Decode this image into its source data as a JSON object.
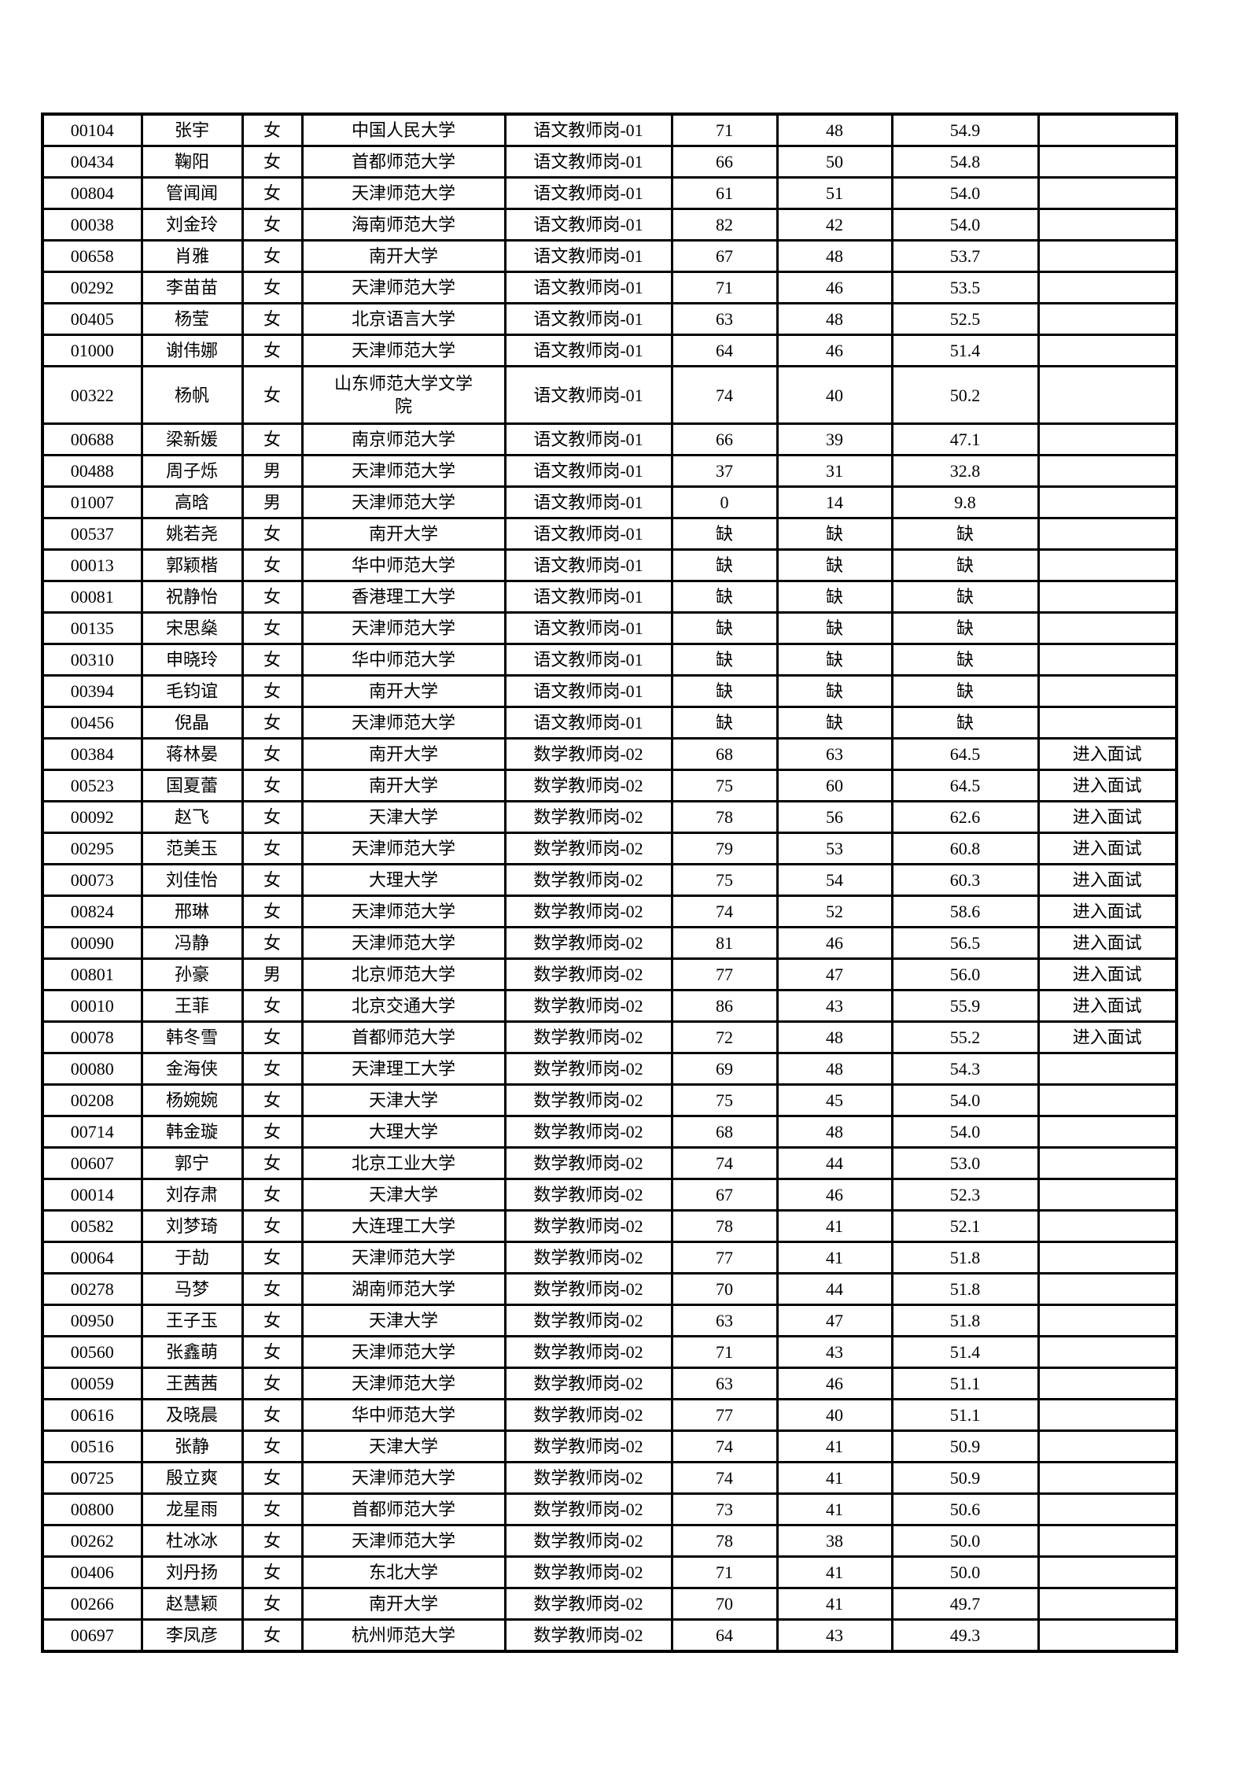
{
  "colors": {
    "background": "#ffffff",
    "text": "#000000",
    "border": "#000000"
  },
  "table": {
    "rows": [
      [
        "00104",
        "张宇",
        "女",
        "中国人民大学",
        "语文教师岗-01",
        "71",
        "48",
        "54.9",
        ""
      ],
      [
        "00434",
        "鞠阳",
        "女",
        "首都师范大学",
        "语文教师岗-01",
        "66",
        "50",
        "54.8",
        ""
      ],
      [
        "00804",
        "管闻闻",
        "女",
        "天津师范大学",
        "语文教师岗-01",
        "61",
        "51",
        "54.0",
        ""
      ],
      [
        "00038",
        "刘金玲",
        "女",
        "海南师范大学",
        "语文教师岗-01",
        "82",
        "42",
        "54.0",
        ""
      ],
      [
        "00658",
        "肖雅",
        "女",
        "南开大学",
        "语文教师岗-01",
        "67",
        "48",
        "53.7",
        ""
      ],
      [
        "00292",
        "李苗苗",
        "女",
        "天津师范大学",
        "语文教师岗-01",
        "71",
        "46",
        "53.5",
        ""
      ],
      [
        "00405",
        "杨莹",
        "女",
        "北京语言大学",
        "语文教师岗-01",
        "63",
        "48",
        "52.5",
        ""
      ],
      [
        "01000",
        "谢伟娜",
        "女",
        "天津师范大学",
        "语文教师岗-01",
        "64",
        "46",
        "51.4",
        ""
      ],
      [
        "00322",
        "杨帆",
        "女",
        "山东师范大学文学\n院",
        "语文教师岗-01",
        "74",
        "40",
        "50.2",
        ""
      ],
      [
        "00688",
        "梁新媛",
        "女",
        "南京师范大学",
        "语文教师岗-01",
        "66",
        "39",
        "47.1",
        ""
      ],
      [
        "00488",
        "周子烁",
        "男",
        "天津师范大学",
        "语文教师岗-01",
        "37",
        "31",
        "32.8",
        ""
      ],
      [
        "01007",
        "高晗",
        "男",
        "天津师范大学",
        "语文教师岗-01",
        "0",
        "14",
        "9.8",
        ""
      ],
      [
        "00537",
        "姚若尧",
        "女",
        "南开大学",
        "语文教师岗-01",
        "缺",
        "缺",
        "缺",
        ""
      ],
      [
        "00013",
        "郭颖楷",
        "女",
        "华中师范大学",
        "语文教师岗-01",
        "缺",
        "缺",
        "缺",
        ""
      ],
      [
        "00081",
        "祝静怡",
        "女",
        "香港理工大学",
        "语文教师岗-01",
        "缺",
        "缺",
        "缺",
        ""
      ],
      [
        "00135",
        "宋思燊",
        "女",
        "天津师范大学",
        "语文教师岗-01",
        "缺",
        "缺",
        "缺",
        ""
      ],
      [
        "00310",
        "申晓玲",
        "女",
        "华中师范大学",
        "语文教师岗-01",
        "缺",
        "缺",
        "缺",
        ""
      ],
      [
        "00394",
        "毛钧谊",
        "女",
        "南开大学",
        "语文教师岗-01",
        "缺",
        "缺",
        "缺",
        ""
      ],
      [
        "00456",
        "倪晶",
        "女",
        "天津师范大学",
        "语文教师岗-01",
        "缺",
        "缺",
        "缺",
        ""
      ],
      [
        "00384",
        "蒋林晏",
        "女",
        "南开大学",
        "数学教师岗-02",
        "68",
        "63",
        "64.5",
        "进入面试"
      ],
      [
        "00523",
        "国夏蕾",
        "女",
        "南开大学",
        "数学教师岗-02",
        "75",
        "60",
        "64.5",
        "进入面试"
      ],
      [
        "00092",
        "赵飞",
        "女",
        "天津大学",
        "数学教师岗-02",
        "78",
        "56",
        "62.6",
        "进入面试"
      ],
      [
        "00295",
        "范美玉",
        "女",
        "天津师范大学",
        "数学教师岗-02",
        "79",
        "53",
        "60.8",
        "进入面试"
      ],
      [
        "00073",
        "刘佳怡",
        "女",
        "大理大学",
        "数学教师岗-02",
        "75",
        "54",
        "60.3",
        "进入面试"
      ],
      [
        "00824",
        "邢琳",
        "女",
        "天津师范大学",
        "数学教师岗-02",
        "74",
        "52",
        "58.6",
        "进入面试"
      ],
      [
        "00090",
        "冯静",
        "女",
        "天津师范大学",
        "数学教师岗-02",
        "81",
        "46",
        "56.5",
        "进入面试"
      ],
      [
        "00801",
        "孙豪",
        "男",
        "北京师范大学",
        "数学教师岗-02",
        "77",
        "47",
        "56.0",
        "进入面试"
      ],
      [
        "00010",
        "王菲",
        "女",
        "北京交通大学",
        "数学教师岗-02",
        "86",
        "43",
        "55.9",
        "进入面试"
      ],
      [
        "00078",
        "韩冬雪",
        "女",
        "首都师范大学",
        "数学教师岗-02",
        "72",
        "48",
        "55.2",
        "进入面试"
      ],
      [
        "00080",
        "金海侠",
        "女",
        "天津理工大学",
        "数学教师岗-02",
        "69",
        "48",
        "54.3",
        ""
      ],
      [
        "00208",
        "杨婉婉",
        "女",
        "天津大学",
        "数学教师岗-02",
        "75",
        "45",
        "54.0",
        ""
      ],
      [
        "00714",
        "韩金璇",
        "女",
        "大理大学",
        "数学教师岗-02",
        "68",
        "48",
        "54.0",
        ""
      ],
      [
        "00607",
        "郭宁",
        "女",
        "北京工业大学",
        "数学教师岗-02",
        "74",
        "44",
        "53.0",
        ""
      ],
      [
        "00014",
        "刘存肃",
        "女",
        "天津大学",
        "数学教师岗-02",
        "67",
        "46",
        "52.3",
        ""
      ],
      [
        "00582",
        "刘梦琦",
        "女",
        "大连理工大学",
        "数学教师岗-02",
        "78",
        "41",
        "52.1",
        ""
      ],
      [
        "00064",
        "于劼",
        "女",
        "天津师范大学",
        "数学教师岗-02",
        "77",
        "41",
        "51.8",
        ""
      ],
      [
        "00278",
        "马梦",
        "女",
        "湖南师范大学",
        "数学教师岗-02",
        "70",
        "44",
        "51.8",
        ""
      ],
      [
        "00950",
        "王子玉",
        "女",
        "天津大学",
        "数学教师岗-02",
        "63",
        "47",
        "51.8",
        ""
      ],
      [
        "00560",
        "张鑫萌",
        "女",
        "天津师范大学",
        "数学教师岗-02",
        "71",
        "43",
        "51.4",
        ""
      ],
      [
        "00059",
        "王茜茜",
        "女",
        "天津师范大学",
        "数学教师岗-02",
        "63",
        "46",
        "51.1",
        ""
      ],
      [
        "00616",
        "及晓晨",
        "女",
        "华中师范大学",
        "数学教师岗-02",
        "77",
        "40",
        "51.1",
        ""
      ],
      [
        "00516",
        "张静",
        "女",
        "天津大学",
        "数学教师岗-02",
        "74",
        "41",
        "50.9",
        ""
      ],
      [
        "00725",
        "殷立爽",
        "女",
        "天津师范大学",
        "数学教师岗-02",
        "74",
        "41",
        "50.9",
        ""
      ],
      [
        "00800",
        "龙星雨",
        "女",
        "首都师范大学",
        "数学教师岗-02",
        "73",
        "41",
        "50.6",
        ""
      ],
      [
        "00262",
        "杜冰冰",
        "女",
        "天津师范大学",
        "数学教师岗-02",
        "78",
        "38",
        "50.0",
        ""
      ],
      [
        "00406",
        "刘丹扬",
        "女",
        "东北大学",
        "数学教师岗-02",
        "71",
        "41",
        "50.0",
        ""
      ],
      [
        "00266",
        "赵慧颖",
        "女",
        "南开大学",
        "数学教师岗-02",
        "70",
        "41",
        "49.7",
        ""
      ],
      [
        "00697",
        "李凤彦",
        "女",
        "杭州师范大学",
        "数学教师岗-02",
        "64",
        "43",
        "49.3",
        ""
      ]
    ]
  }
}
